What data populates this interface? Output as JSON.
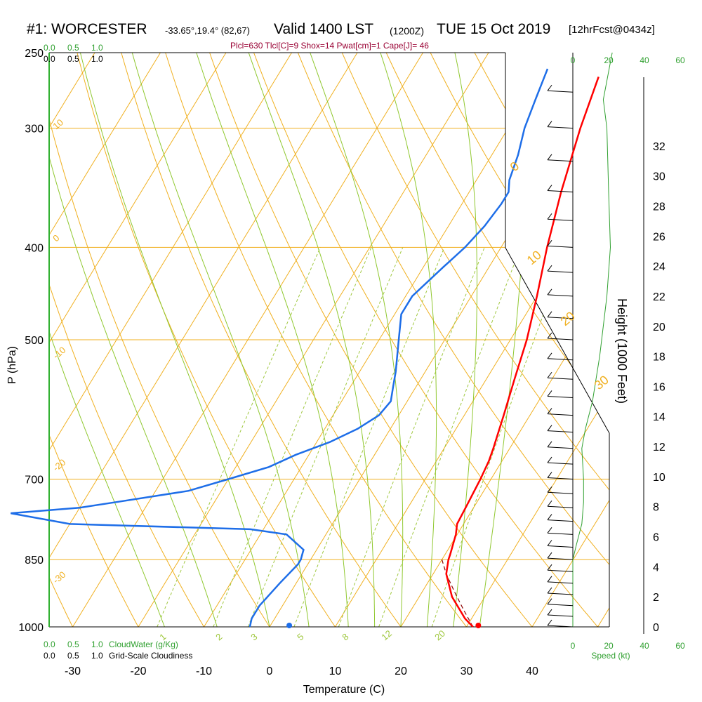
{
  "header": {
    "title": "#1: WORCESTER",
    "coords": "-33.65°,19.4° (82,67)",
    "valid": "Valid 1400 LST",
    "zulu": "(1200Z)",
    "date": "TUE 15 Oct 2019",
    "forecast": "[12hrFcst@0434z]",
    "stats": "Plcl=630 Tlcl[C]=9 Shox=14 Pwat[cm]=1 Cape[J]= 46"
  },
  "chart_data": {
    "type": "skewt",
    "ylabel": "P (hPa)",
    "xlabel": "Temperature (C)",
    "pressure_ticks": [
      250,
      300,
      400,
      500,
      700,
      850,
      1000
    ],
    "temp_ticks": [
      -30,
      -20,
      -10,
      0,
      10,
      20,
      30,
      40
    ],
    "ylim": [
      1000,
      250
    ],
    "xlim": [
      -34,
      36
    ],
    "cloud_scale_top_green": [
      "0.0",
      "0.5",
      "1.0"
    ],
    "cloud_scale_top_black": [
      "0.0",
      "0.5",
      "1.0"
    ],
    "cloud_scale_bottom_green": [
      "0.0",
      "0.5",
      "1.0"
    ],
    "cloud_scale_bottom_black": [
      "0.0",
      "0.5",
      "1.0"
    ],
    "cloudwater_label": "CloudWater (g/Kg)",
    "cloudiness_label": "Grid-Scale Cloudiness",
    "dry_adiabat_labels": [
      "10",
      "0",
      "-10",
      "-20",
      "-30",
      "0",
      "10",
      "20",
      "30"
    ],
    "mixing_ratio_labels": [
      "1",
      "2",
      "3",
      "5",
      "8",
      "12",
      "20"
    ],
    "temperature_series": {
      "name": "Temperature",
      "color": "#ff0000",
      "points": [
        [
          1000,
          31
        ],
        [
          980,
          29
        ],
        [
          930,
          25
        ],
        [
          880,
          22
        ],
        [
          850,
          21
        ],
        [
          840,
          20.8
        ],
        [
          800,
          19.8
        ],
        [
          780,
          19
        ],
        [
          750,
          18.8
        ],
        [
          700,
          18.4
        ],
        [
          670,
          18
        ],
        [
          650,
          17.5
        ],
        [
          600,
          16
        ],
        [
          550,
          14.3
        ],
        [
          500,
          12.5
        ],
        [
          450,
          10
        ],
        [
          400,
          7
        ],
        [
          350,
          4
        ],
        [
          300,
          1
        ],
        [
          265,
          -1
        ]
      ]
    },
    "dewpoint_series": {
      "name": "Dewpoint",
      "color": "#1e6ee8",
      "points": [
        [
          1000,
          -3
        ],
        [
          980,
          -3.5
        ],
        [
          950,
          -3.5
        ],
        [
          900,
          -2.5
        ],
        [
          860,
          -1.5
        ],
        [
          850,
          -1.5
        ],
        [
          830,
          -2
        ],
        [
          800,
          -6
        ],
        [
          790,
          -12
        ],
        [
          780,
          -40
        ],
        [
          760,
          -50
        ],
        [
          750,
          -40
        ],
        [
          740,
          -35
        ],
        [
          720,
          -25
        ],
        [
          700,
          -20
        ],
        [
          680,
          -15
        ],
        [
          660,
          -12
        ],
        [
          640,
          -8
        ],
        [
          620,
          -5
        ],
        [
          600,
          -3
        ],
        [
          580,
          -2.5
        ],
        [
          560,
          -3.5
        ],
        [
          540,
          -4.5
        ],
        [
          500,
          -7
        ],
        [
          470,
          -9
        ],
        [
          450,
          -9
        ],
        [
          420,
          -7
        ],
        [
          400,
          -5.5
        ],
        [
          380,
          -4.5
        ],
        [
          360,
          -4
        ],
        [
          350,
          -4
        ],
        [
          340,
          -5
        ],
        [
          320,
          -6
        ],
        [
          300,
          -7.5
        ],
        [
          280,
          -8.5
        ],
        [
          260,
          -9.5
        ]
      ]
    },
    "parcel_series": {
      "name": "Parcel",
      "color": "#8a0000",
      "points": [
        [
          1000,
          31
        ],
        [
          960,
          28
        ],
        [
          920,
          25
        ],
        [
          880,
          22
        ],
        [
          850,
          20
        ]
      ]
    },
    "surface_temp": 31.8,
    "surface_dewpoint": 3,
    "height_axis": {
      "label": "Height (1000 Feet)",
      "ticks": [
        0,
        2,
        4,
        6,
        8,
        10,
        12,
        14,
        16,
        18,
        20,
        22,
        24,
        26,
        28,
        30,
        32
      ]
    },
    "wind_speed_axis": {
      "label": "Speed (kt)",
      "ticks_green": [
        0,
        20,
        40,
        60
      ],
      "ticks_bottom_green": [
        0,
        20,
        40,
        60
      ]
    },
    "wind_speed_profile": [
      [
        1000,
        0
      ],
      [
        850,
        0
      ],
      [
        820,
        2
      ],
      [
        780,
        5
      ],
      [
        740,
        6
      ],
      [
        700,
        6
      ],
      [
        650,
        5
      ],
      [
        620,
        7
      ],
      [
        580,
        11
      ],
      [
        520,
        15
      ],
      [
        450,
        19
      ],
      [
        400,
        21
      ],
      [
        350,
        20
      ],
      [
        300,
        19
      ],
      [
        280,
        17
      ],
      [
        250,
        22
      ]
    ]
  }
}
